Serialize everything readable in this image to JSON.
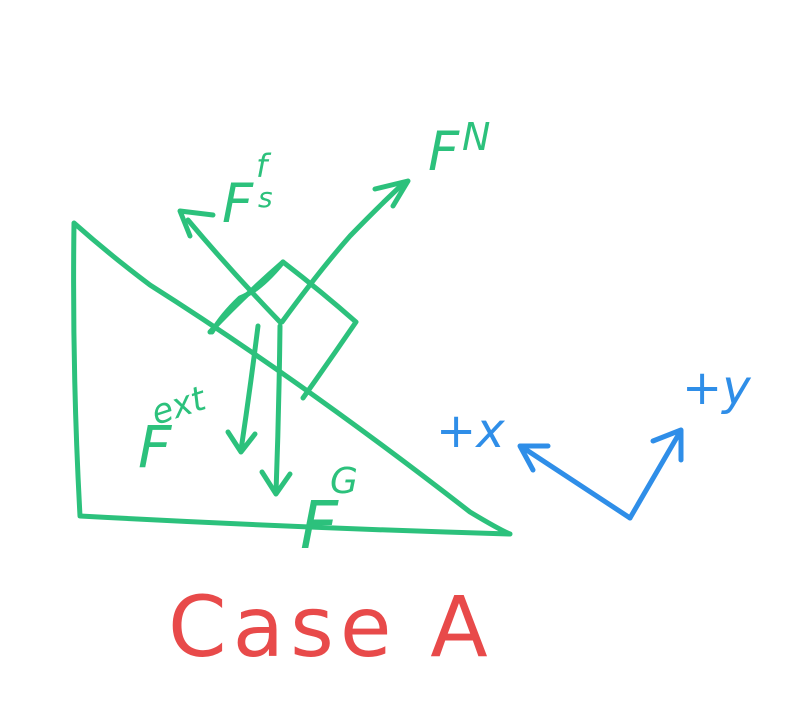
{
  "labels": {
    "friction": {
      "main": "F",
      "sup": "f",
      "sub": "s"
    },
    "normal": {
      "main": "F",
      "sup": "N"
    },
    "external": {
      "main": "F",
      "sup": "ext"
    },
    "gravity": {
      "main": "F",
      "sup": "G"
    },
    "axis_x": "+x",
    "axis_y": "+y",
    "case_title": "Case A"
  },
  "colors": {
    "forces": "#2cc17c",
    "axes": "#2f8ee8",
    "title": "#e84a4a"
  }
}
